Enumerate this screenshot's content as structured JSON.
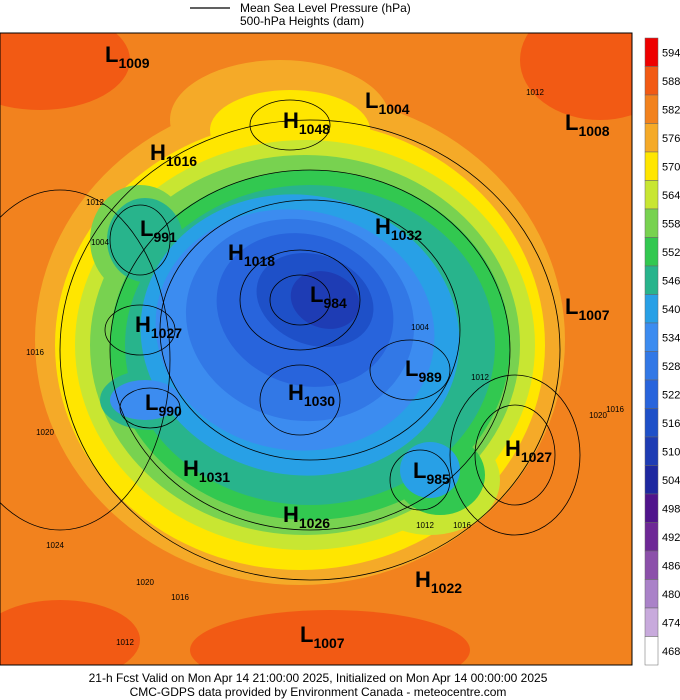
{
  "legend": {
    "line_label": "Mean Sea Level Pressure (hPa)",
    "fill_label": "500-hPa Heights (dam)"
  },
  "colorbar": {
    "ticks": [
      594,
      588,
      582,
      576,
      570,
      564,
      558,
      552,
      546,
      540,
      534,
      528,
      522,
      516,
      510,
      504,
      498,
      492,
      486,
      480,
      474,
      468
    ],
    "colors": [
      "#ee0000",
      "#f25a14",
      "#f2821e",
      "#f5aa28",
      "#ffe600",
      "#c8e632",
      "#78d250",
      "#32c850",
      "#28b48c",
      "#28a0e6",
      "#3c8cf0",
      "#3278e6",
      "#2864dc",
      "#1e50c8",
      "#1e3cb4",
      "#1e28a0",
      "#50148c",
      "#6e2896",
      "#8c50aa",
      "#aa82c8",
      "#c8aadc",
      "#ffffff"
    ]
  },
  "centers": [
    {
      "symbol": "L",
      "value": 1009
    },
    {
      "symbol": "H",
      "value": 1048
    },
    {
      "symbol": "L",
      "value": 1004
    },
    {
      "symbol": "L",
      "value": 1008
    },
    {
      "symbol": "H",
      "value": 1016
    },
    {
      "symbol": "L",
      "value": 991
    },
    {
      "symbol": "H",
      "value": 1018
    },
    {
      "symbol": "H",
      "value": 1032
    },
    {
      "symbol": "L",
      "value": 984
    },
    {
      "symbol": "L",
      "value": 1007
    },
    {
      "symbol": "H",
      "value": 1027
    },
    {
      "symbol": "L",
      "value": 989
    },
    {
      "symbol": "L",
      "value": 990
    },
    {
      "symbol": "H",
      "value": 1030
    },
    {
      "symbol": "H",
      "value": 1027
    },
    {
      "symbol": "H",
      "value": 1031
    },
    {
      "symbol": "L",
      "value": 985
    },
    {
      "symbol": "H",
      "value": 1026
    },
    {
      "symbol": "H",
      "value": 1022
    },
    {
      "symbol": "L",
      "value": 1007
    }
  ],
  "isobar_labels": [
    1012,
    1012,
    1004,
    1016,
    1020,
    1024,
    1020,
    1016,
    1012,
    1012,
    1016,
    1020,
    1016,
    1004,
    1012
  ],
  "footer": {
    "line1": "21-h Fcst Valid on Mon Apr 14 21:00:00 2025, Initialized on Mon Apr 14 00:00:00 2025",
    "line2": "CMC-GDPS data provided by Environment Canada - meteocentre.com"
  }
}
